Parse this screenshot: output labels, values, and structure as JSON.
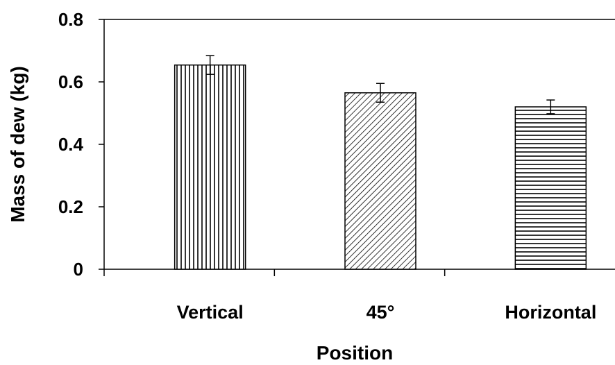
{
  "chart_data": {
    "type": "bar",
    "title": "",
    "xlabel": "Position",
    "ylabel": "Mass of dew (kg)",
    "categories": [
      "Vertical",
      "45°",
      "Horizontal"
    ],
    "values": [
      0.654,
      0.565,
      0.52
    ],
    "errors": [
      0.03,
      0.03,
      0.022
    ],
    "patterns": [
      "vertical-lines",
      "diagonal-lines",
      "horizontal-lines"
    ],
    "ylim": [
      0,
      0.8
    ],
    "yticks": [
      0,
      0.2,
      0.4,
      0.6,
      0.8
    ],
    "ytick_labels": [
      "0",
      "0.2",
      "0.4",
      "0.6",
      "0.8"
    ],
    "grid": false,
    "legend": "none",
    "colors": {
      "stroke": "#000000",
      "fill": "#ffffff"
    }
  }
}
